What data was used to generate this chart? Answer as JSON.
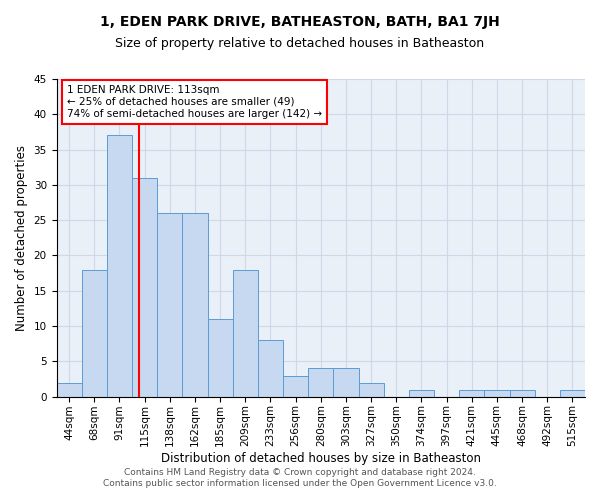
{
  "title": "1, EDEN PARK DRIVE, BATHEASTON, BATH, BA1 7JH",
  "subtitle": "Size of property relative to detached houses in Batheaston",
  "xlabel": "Distribution of detached houses by size in Batheaston",
  "ylabel": "Number of detached properties",
  "bar_labels": [
    "44sqm",
    "68sqm",
    "91sqm",
    "115sqm",
    "138sqm",
    "162sqm",
    "185sqm",
    "209sqm",
    "233sqm",
    "256sqm",
    "280sqm",
    "303sqm",
    "327sqm",
    "350sqm",
    "374sqm",
    "397sqm",
    "421sqm",
    "445sqm",
    "468sqm",
    "492sqm",
    "515sqm"
  ],
  "bar_values": [
    2,
    18,
    37,
    31,
    26,
    26,
    11,
    18,
    8,
    3,
    4,
    4,
    2,
    0,
    1,
    0,
    1,
    1,
    1,
    0,
    1
  ],
  "bar_color": "#c6d9f0",
  "bar_edge_color": "#5b9bd5",
  "red_line_x": 2.78,
  "annotation_line1": "1 EDEN PARK DRIVE: 113sqm",
  "annotation_line2": "← 25% of detached houses are smaller (49)",
  "annotation_line3": "74% of semi-detached houses are larger (142) →",
  "ylim": [
    0,
    45
  ],
  "yticks": [
    0,
    5,
    10,
    15,
    20,
    25,
    30,
    35,
    40,
    45
  ],
  "grid_color": "#d0d8e8",
  "background_color": "#eaf0f8",
  "footer_line1": "Contains HM Land Registry data © Crown copyright and database right 2024.",
  "footer_line2": "Contains public sector information licensed under the Open Government Licence v3.0.",
  "title_fontsize": 10,
  "subtitle_fontsize": 9,
  "axis_label_fontsize": 8.5,
  "tick_fontsize": 7.5,
  "annotation_fontsize": 7.5,
  "footer_fontsize": 6.5
}
